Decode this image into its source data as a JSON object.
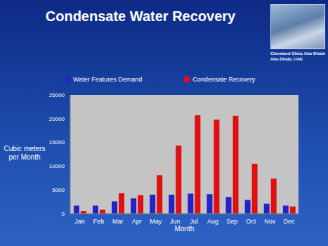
{
  "chart_data": {
    "type": "bar",
    "title": "Condensate Water Recovery",
    "annotations": [
      "Cleveland Clinic Abu Dhabi",
      "Abu Dhabi, UAE"
    ],
    "x_label": "Month",
    "y_label": "Cubic meters per Month",
    "categories": [
      "Jan",
      "Feb",
      "Mar",
      "Apr",
      "May",
      "Jun",
      "Jul",
      "Aug",
      "Sep",
      "Oct",
      "Nov",
      "Dec"
    ],
    "series": [
      {
        "name": "Water Features Demand",
        "color": "#2323c8",
        "values": [
          1700,
          1700,
          2600,
          3200,
          4000,
          4000,
          4200,
          4100,
          3500,
          2900,
          2100,
          1700
        ]
      },
      {
        "name": "Condensate Recovery",
        "color": "#e01010",
        "values": [
          600,
          800,
          4300,
          3900,
          8100,
          14300,
          20700,
          19800,
          20600,
          10500,
          7400,
          1500
        ]
      }
    ],
    "ylim": [
      0,
      25000
    ],
    "yticks": [
      0,
      5000,
      10000,
      15000,
      20000,
      25000
    ],
    "grid": false,
    "legend": "top"
  }
}
